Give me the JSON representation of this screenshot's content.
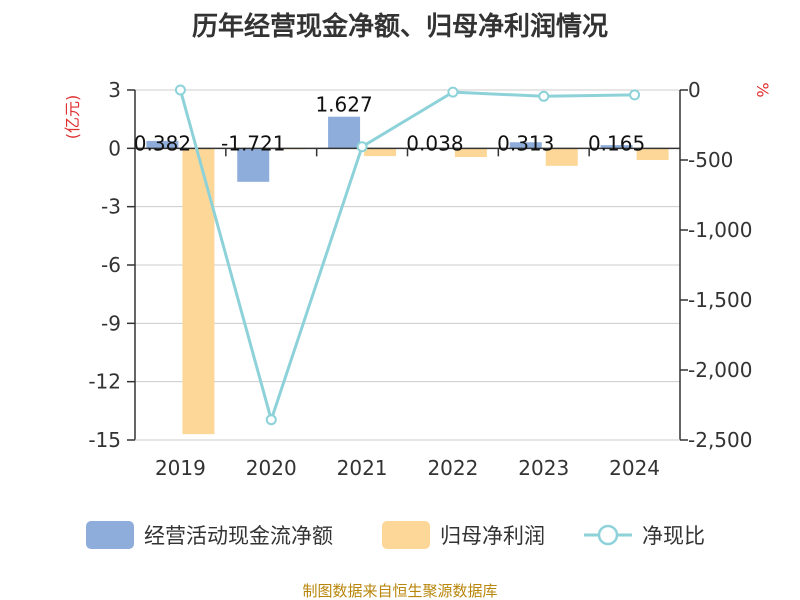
{
  "chart_data": {
    "type": "bar+line",
    "title": "历年经营现金净额、归母净利润情况",
    "categories": [
      "2019",
      "2020",
      "2021",
      "2022",
      "2023",
      "2024"
    ],
    "y_left": {
      "unit_label": "(亿元)",
      "ticks": [
        "3",
        "0",
        "-3",
        "-6",
        "-9",
        "-12",
        "-15"
      ],
      "range": [
        -15,
        3
      ]
    },
    "y_right": {
      "unit_label": "%",
      "ticks": [
        "0",
        "-500",
        "-1,000",
        "-1,500",
        "-2,000",
        "-2,500"
      ],
      "range": [
        -2500,
        0
      ]
    },
    "series": [
      {
        "name": "经营活动现金流净额",
        "kind": "bar",
        "axis": "left",
        "color": "#8eaddb",
        "values": [
          0.382,
          -1.721,
          1.627,
          0.038,
          0.313,
          0.165
        ],
        "labels": [
          "0.382",
          "-1.721",
          "1.627",
          "0.038",
          "0.313",
          "0.165"
        ]
      },
      {
        "name": "归母净利润",
        "kind": "bar",
        "axis": "left",
        "color": "#fdd797",
        "values": [
          -14.7,
          -0.05,
          -0.4,
          -0.45,
          -0.9,
          -0.6
        ]
      },
      {
        "name": "净现比",
        "kind": "line",
        "axis": "right",
        "color": "#8ed2d9",
        "values": [
          0,
          -2355,
          -405,
          -15,
          -45,
          -35
        ]
      }
    ],
    "legend_position": "bottom",
    "grid": true
  },
  "footer": {
    "source": "制图数据来自恒生聚源数据库"
  }
}
